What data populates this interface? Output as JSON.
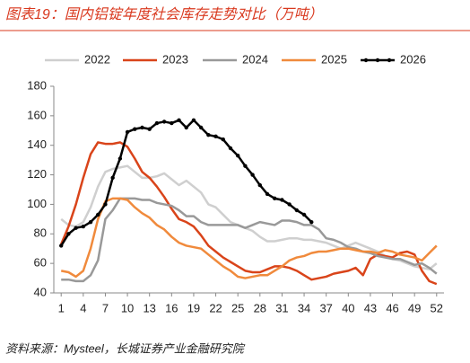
{
  "chart_data": {
    "type": "line",
    "title": "图表19：国内铝锭年度社会库存走势对比（万吨）",
    "source": "资料来源：Mysteel，长城证券产业金融研究院",
    "x": [
      1,
      2,
      3,
      4,
      5,
      6,
      7,
      8,
      9,
      10,
      11,
      12,
      13,
      14,
      15,
      16,
      17,
      18,
      19,
      20,
      21,
      22,
      23,
      24,
      25,
      26,
      27,
      28,
      29,
      30,
      31,
      32,
      33,
      34,
      35,
      36,
      37,
      38,
      39,
      40,
      41,
      42,
      43,
      44,
      45,
      46,
      47,
      48,
      49,
      50,
      51,
      52
    ],
    "xlim": [
      0,
      53
    ],
    "xticks": [
      1,
      4,
      7,
      10,
      13,
      16,
      19,
      22,
      25,
      28,
      31,
      34,
      37,
      40,
      43,
      46,
      49,
      52
    ],
    "ylim": [
      40,
      180
    ],
    "yticks": [
      40,
      60,
      80,
      100,
      120,
      140,
      160,
      180
    ],
    "series": [
      {
        "name": "2022",
        "color": "#cfcfcf",
        "values": [
          90,
          86,
          85,
          88,
          98,
          112,
          122,
          124,
          125,
          126,
          122,
          118,
          118,
          119,
          121,
          117,
          113,
          116,
          112,
          108,
          100,
          98,
          93,
          88,
          86,
          84,
          82,
          78,
          75,
          75,
          76,
          77,
          77,
          76,
          76,
          75,
          74,
          72,
          70,
          72,
          74,
          72,
          70,
          68,
          65,
          63,
          62,
          60,
          58,
          57,
          56,
          60
        ]
      },
      {
        "name": "2023",
        "color": "#d9441a",
        "values": [
          73,
          85,
          100,
          118,
          134,
          142,
          141,
          141,
          142,
          139,
          131,
          122,
          118,
          112,
          105,
          97,
          90,
          88,
          85,
          79,
          72,
          68,
          64,
          61,
          58,
          55,
          54,
          54,
          56,
          58,
          58,
          57,
          55,
          52,
          49,
          50,
          51,
          53,
          54,
          55,
          57,
          52,
          63,
          66,
          65,
          64,
          67,
          68,
          66,
          55,
          48,
          46
        ]
      },
      {
        "name": "2024",
        "color": "#999999",
        "values": [
          49,
          49,
          48,
          48,
          52,
          62,
          90,
          96,
          104,
          104,
          104,
          103,
          103,
          101,
          100,
          99,
          96,
          92,
          92,
          88,
          86,
          86,
          86,
          86,
          86,
          84,
          86,
          88,
          87,
          86,
          89,
          89,
          88,
          86,
          86,
          83,
          77,
          76,
          74,
          71,
          70,
          68,
          67,
          65,
          64,
          63,
          63,
          61,
          59,
          60,
          57,
          53
        ]
      },
      {
        "name": "2025",
        "color": "#f08a3c",
        "values": [
          55,
          54,
          51,
          55,
          70,
          90,
          102,
          104,
          104,
          103,
          98,
          94,
          91,
          86,
          83,
          78,
          74,
          72,
          71,
          70,
          66,
          62,
          58,
          55,
          51,
          50,
          51,
          52,
          52,
          55,
          58,
          62,
          64,
          65,
          67,
          68,
          68,
          69,
          70,
          70,
          69,
          68,
          68,
          67,
          69,
          68,
          66,
          65,
          64,
          62,
          67,
          72
        ]
      },
      {
        "name": "2026",
        "color": "#000000",
        "markers": true,
        "values": [
          72,
          80,
          84,
          85,
          88,
          93,
          100,
          118,
          131,
          149,
          151,
          152,
          151,
          155,
          156,
          155,
          157,
          152,
          157,
          152,
          147,
          146,
          144,
          138,
          133,
          126,
          120,
          113,
          107,
          104,
          103,
          100,
          96,
          93,
          88,
          null,
          null,
          null,
          null,
          null,
          null,
          null,
          null,
          null,
          null,
          null,
          null,
          null,
          null,
          null,
          null,
          null
        ]
      }
    ]
  }
}
